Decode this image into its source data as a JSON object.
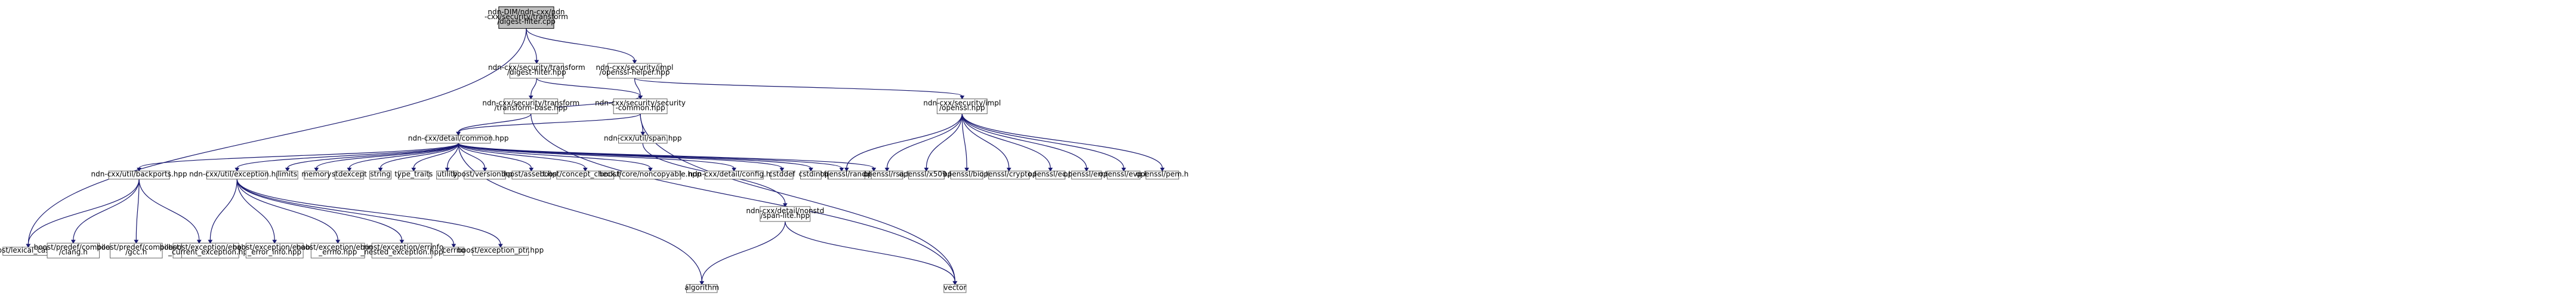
{
  "nodes": [
    {
      "id": "root",
      "lines": [
        "ndn-DIM/ndn-cxx/ndn",
        "-cxx/security/transform",
        "/digest-filter.cpp"
      ],
      "root": true
    },
    {
      "id": "digest_filter_hpp",
      "lines": [
        "ndn-cxx/security/transform",
        "/digest-filter.hpp"
      ]
    },
    {
      "id": "openssl_helper_hpp",
      "lines": [
        "ndn-cxx/security/impl",
        "/openssl-helper.hpp"
      ]
    },
    {
      "id": "transform_base_hpp",
      "lines": [
        "ndn-cxx/security/transform",
        "/transform-base.hpp"
      ]
    },
    {
      "id": "security_common_hpp",
      "lines": [
        "ndn-cxx/security/security",
        "-common.hpp"
      ]
    },
    {
      "id": "openssl_hpp",
      "lines": [
        "ndn-cxx/security/impl",
        "/openssl.hpp"
      ]
    },
    {
      "id": "detail_common_hpp",
      "lines": [
        "ndn-cxx/detail/common.hpp"
      ]
    },
    {
      "id": "span_hpp",
      "lines": [
        "ndn-cxx/util/span.hpp"
      ]
    },
    {
      "id": "backports_hpp",
      "lines": [
        "ndn-cxx/util/backports.hpp"
      ]
    },
    {
      "id": "exception_hpp",
      "lines": [
        "ndn-cxx/util/exception.hpp"
      ]
    },
    {
      "id": "limits",
      "lines": [
        "limits"
      ]
    },
    {
      "id": "memory",
      "lines": [
        "memory"
      ]
    },
    {
      "id": "stdexcept",
      "lines": [
        "stdexcept"
      ]
    },
    {
      "id": "string",
      "lines": [
        "string"
      ]
    },
    {
      "id": "type_traits",
      "lines": [
        "type_traits"
      ]
    },
    {
      "id": "utility",
      "lines": [
        "utility"
      ]
    },
    {
      "id": "boost_version",
      "lines": [
        "boost/version.hpp"
      ]
    },
    {
      "id": "boost_assert",
      "lines": [
        "boost/assert.hpp"
      ]
    },
    {
      "id": "boost_concept_check",
      "lines": [
        "boost/concept_check.hpp"
      ]
    },
    {
      "id": "boost_noncopyable",
      "lines": [
        "boost/core/noncopyable.hpp"
      ]
    },
    {
      "id": "detail_config",
      "lines": [
        "ndn-cxx/detail/config.hpp"
      ]
    },
    {
      "id": "cstddef",
      "lines": [
        "cstddef"
      ]
    },
    {
      "id": "cstdint",
      "lines": [
        "cstdint"
      ]
    },
    {
      "id": "functional",
      "lines": [
        "functional"
      ]
    },
    {
      "id": "iosfwd",
      "lines": [
        "iosfwd"
      ]
    },
    {
      "id": "span_lite",
      "lines": [
        "ndn-cxx/detail/nonstd",
        "/span-lite.hpp"
      ]
    },
    {
      "id": "openssl_rand",
      "lines": [
        "openssl/rand.h"
      ]
    },
    {
      "id": "openssl_rsa",
      "lines": [
        "openssl/rsa.h"
      ]
    },
    {
      "id": "openssl_x509",
      "lines": [
        "openssl/x509.h"
      ]
    },
    {
      "id": "openssl_bio",
      "lines": [
        "openssl/bio.h"
      ]
    },
    {
      "id": "openssl_crypto",
      "lines": [
        "openssl/crypto.h"
      ]
    },
    {
      "id": "openssl_ec",
      "lines": [
        "openssl/ec.h"
      ]
    },
    {
      "id": "openssl_err",
      "lines": [
        "openssl/err.h"
      ]
    },
    {
      "id": "openssl_evp",
      "lines": [
        "openssl/evp.h"
      ]
    },
    {
      "id": "openssl_pem",
      "lines": [
        "openssl/pem.h"
      ]
    },
    {
      "id": "boost_lexical_cast",
      "lines": [
        "boost/lexical_cast.hpp"
      ]
    },
    {
      "id": "predef_clang",
      "lines": [
        "boost/predef/compiler",
        "/clang.h"
      ]
    },
    {
      "id": "predef_gcc",
      "lines": [
        "boost/predef/compiler",
        "/gcc.h"
      ]
    },
    {
      "id": "predef_visualc",
      "lines": [
        "boost/predef/compiler",
        "/visualc.h"
      ]
    },
    {
      "id": "enable_current_exception",
      "lines": [
        "boost/exception/enable",
        "_current_exception.hpp"
      ]
    },
    {
      "id": "enable_error_info",
      "lines": [
        "boost/exception/enable",
        "_error_info.hpp"
      ]
    },
    {
      "id": "errinfo_errno",
      "lines": [
        "boost/exception/errinfo",
        "_errno.hpp"
      ]
    },
    {
      "id": "errinfo_nested",
      "lines": [
        "boost/exception/errinfo",
        "_nested_exception.hpp"
      ]
    },
    {
      "id": "cerrno",
      "lines": [
        "cerrno"
      ]
    },
    {
      "id": "exception_ptr",
      "lines": [
        "boost/exception_ptr.hpp"
      ]
    },
    {
      "id": "algorithm",
      "lines": [
        "algorithm"
      ]
    },
    {
      "id": "vector",
      "lines": [
        "vector"
      ]
    }
  ],
  "edges": [
    [
      "root",
      "digest_filter_hpp"
    ],
    [
      "root",
      "openssl_helper_hpp"
    ],
    [
      "root",
      "boost_lexical_cast"
    ],
    [
      "digest_filter_hpp",
      "transform_base_hpp"
    ],
    [
      "digest_filter_hpp",
      "security_common_hpp"
    ],
    [
      "openssl_helper_hpp",
      "security_common_hpp"
    ],
    [
      "openssl_helper_hpp",
      "openssl_hpp"
    ],
    [
      "transform_base_hpp",
      "detail_common_hpp"
    ],
    [
      "transform_base_hpp",
      "security_common_hpp"
    ],
    [
      "transform_base_hpp",
      "vector"
    ],
    [
      "security_common_hpp",
      "detail_common_hpp"
    ],
    [
      "security_common_hpp",
      "span_hpp"
    ],
    [
      "security_common_hpp",
      "vector"
    ],
    [
      "openssl_hpp",
      "openssl_rand"
    ],
    [
      "openssl_hpp",
      "openssl_rsa"
    ],
    [
      "openssl_hpp",
      "openssl_x509"
    ],
    [
      "openssl_hpp",
      "openssl_bio"
    ],
    [
      "openssl_hpp",
      "openssl_crypto"
    ],
    [
      "openssl_hpp",
      "openssl_ec"
    ],
    [
      "openssl_hpp",
      "openssl_err"
    ],
    [
      "openssl_hpp",
      "openssl_evp"
    ],
    [
      "openssl_hpp",
      "openssl_pem"
    ],
    [
      "detail_common_hpp",
      "backports_hpp"
    ],
    [
      "detail_common_hpp",
      "exception_hpp"
    ],
    [
      "detail_common_hpp",
      "limits"
    ],
    [
      "detail_common_hpp",
      "memory"
    ],
    [
      "detail_common_hpp",
      "stdexcept"
    ],
    [
      "detail_common_hpp",
      "string"
    ],
    [
      "detail_common_hpp",
      "type_traits"
    ],
    [
      "detail_common_hpp",
      "utility"
    ],
    [
      "detail_common_hpp",
      "boost_version"
    ],
    [
      "detail_common_hpp",
      "boost_assert"
    ],
    [
      "detail_common_hpp",
      "boost_concept_check"
    ],
    [
      "detail_common_hpp",
      "boost_noncopyable"
    ],
    [
      "detail_common_hpp",
      "detail_config"
    ],
    [
      "detail_common_hpp",
      "cstddef"
    ],
    [
      "detail_common_hpp",
      "cstdint"
    ],
    [
      "detail_common_hpp",
      "functional"
    ],
    [
      "detail_common_hpp",
      "iosfwd"
    ],
    [
      "detail_common_hpp",
      "algorithm"
    ],
    [
      "span_hpp",
      "span_lite"
    ],
    [
      "span_lite",
      "algorithm"
    ],
    [
      "span_lite",
      "vector"
    ],
    [
      "backports_hpp",
      "boost_lexical_cast"
    ],
    [
      "backports_hpp",
      "predef_clang"
    ],
    [
      "backports_hpp",
      "predef_gcc"
    ],
    [
      "backports_hpp",
      "predef_visualc"
    ],
    [
      "exception_hpp",
      "enable_current_exception"
    ],
    [
      "exception_hpp",
      "enable_error_info"
    ],
    [
      "exception_hpp",
      "errinfo_errno"
    ],
    [
      "exception_hpp",
      "errinfo_nested"
    ],
    [
      "exception_hpp",
      "cerrno"
    ],
    [
      "exception_hpp",
      "exception_ptr"
    ]
  ],
  "colors": {
    "edge": "#191970",
    "root_fill": "#bfbfbf",
    "node_border": "#666666"
  }
}
